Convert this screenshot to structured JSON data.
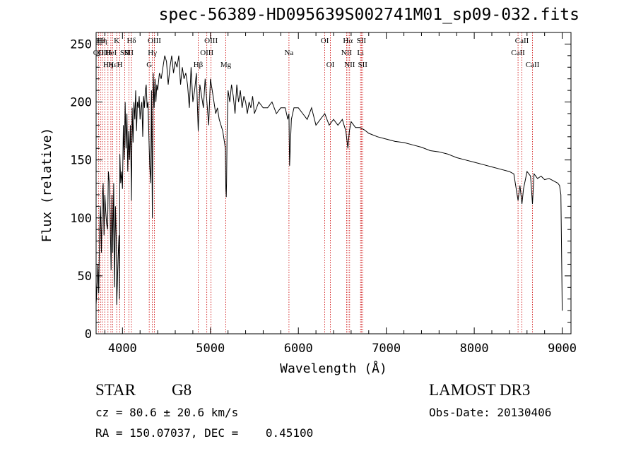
{
  "chart_data": {
    "type": "line",
    "title": "spec-56389-HD095639S002741M01_sp09-032.fits",
    "xlabel": "Wavelength (Å)",
    "ylabel": "Flux (relative)",
    "xlim": [
      3700,
      9100
    ],
    "ylim": [
      0,
      260
    ],
    "xticks": [
      4000,
      5000,
      6000,
      7000,
      8000,
      9000
    ],
    "yticks": [
      0,
      50,
      100,
      150,
      200,
      250
    ],
    "grid": false,
    "series": [
      {
        "x": [
          3700,
          3710,
          3720,
          3730,
          3740,
          3750,
          3760,
          3770,
          3780,
          3790,
          3800,
          3810,
          3820,
          3830,
          3840,
          3850,
          3860,
          3870,
          3880,
          3890,
          3900,
          3910,
          3920,
          3930,
          3935,
          3940,
          3950,
          3960,
          3965,
          3970,
          3980,
          3990,
          4000,
          4010,
          4020,
          4030,
          4040,
          4050,
          4060,
          4070,
          4080,
          4090,
          4100,
          4102,
          4110,
          4120,
          4130,
          4140,
          4150,
          4160,
          4170,
          4180,
          4190,
          4200,
          4210,
          4220,
          4230,
          4240,
          4250,
          4260,
          4270,
          4280,
          4290,
          4300,
          4310,
          4320,
          4330,
          4340,
          4350,
          4360,
          4370,
          4380,
          4390,
          4400,
          4420,
          4440,
          4460,
          4480,
          4500,
          4520,
          4540,
          4560,
          4580,
          4600,
          4620,
          4640,
          4660,
          4680,
          4700,
          4720,
          4740,
          4760,
          4780,
          4800,
          4820,
          4840,
          4861,
          4880,
          4900,
          4920,
          4940,
          4960,
          4980,
          5000,
          5020,
          5040,
          5060,
          5080,
          5100,
          5120,
          5140,
          5160,
          5170,
          5175,
          5180,
          5183,
          5190,
          5200,
          5220,
          5240,
          5260,
          5280,
          5300,
          5320,
          5340,
          5360,
          5380,
          5400,
          5420,
          5440,
          5460,
          5480,
          5500,
          5550,
          5600,
          5650,
          5700,
          5750,
          5800,
          5850,
          5880,
          5893,
          5900,
          5920,
          5950,
          6000,
          6050,
          6100,
          6150,
          6200,
          6250,
          6300,
          6350,
          6400,
          6450,
          6500,
          6540,
          6563,
          6580,
          6600,
          6650,
          6700,
          6750,
          6800,
          6900,
          7000,
          7100,
          7200,
          7300,
          7400,
          7500,
          7600,
          7700,
          7800,
          7900,
          8000,
          8100,
          8200,
          8300,
          8400,
          8450,
          8498,
          8520,
          8542,
          8560,
          8600,
          8640,
          8662,
          8680,
          8720,
          8760,
          8800,
          8850,
          8900,
          8950,
          8970,
          8985,
          8990,
          8995,
          9000
        ],
        "y": [
          25,
          40,
          60,
          35,
          90,
          110,
          70,
          115,
          130,
          85,
          120,
          105,
          95,
          90,
          140,
          130,
          100,
          55,
          120,
          70,
          130,
          40,
          110,
          80,
          25,
          40,
          65,
          85,
          30,
          155,
          130,
          140,
          125,
          180,
          150,
          200,
          160,
          190,
          140,
          175,
          150,
          180,
          130,
          115,
          195,
          165,
          200,
          185,
          210,
          175,
          200,
          195,
          205,
          185,
          195,
          200,
          170,
          205,
          195,
          210,
          215,
          195,
          200,
          170,
          145,
          130,
          210,
          100,
          225,
          195,
          220,
          200,
          215,
          210,
          225,
          220,
          230,
          240,
          235,
          215,
          230,
          240,
          225,
          235,
          230,
          240,
          215,
          230,
          220,
          225,
          215,
          195,
          230,
          200,
          210,
          225,
          175,
          215,
          205,
          195,
          220,
          200,
          180,
          220,
          210,
          200,
          190,
          195,
          185,
          180,
          175,
          165,
          160,
          125,
          118,
          130,
          175,
          210,
          200,
          215,
          205,
          190,
          215,
          200,
          210,
          195,
          205,
          200,
          190,
          200,
          195,
          205,
          190,
          200,
          195,
          195,
          200,
          190,
          195,
          195,
          185,
          190,
          145,
          185,
          195,
          195,
          190,
          185,
          195,
          180,
          185,
          190,
          180,
          185,
          180,
          185,
          175,
          160,
          175,
          183,
          178,
          178,
          176,
          173,
          170,
          168,
          166,
          165,
          163,
          161,
          158,
          157,
          155,
          152,
          150,
          148,
          146,
          144,
          142,
          140,
          138,
          115,
          128,
          112,
          125,
          140,
          136,
          112,
          138,
          134,
          136,
          133,
          134,
          132,
          130,
          128,
          120,
          90,
          60,
          20
        ]
      }
    ],
    "line_ids": [
      {
        "x": 3727,
        "label": "OII",
        "row": 2
      },
      {
        "x": 3750,
        "label": "Hθ",
        "row": 1
      },
      {
        "x": 3770,
        "label": "Hη",
        "row": 1
      },
      {
        "x": 3798,
        "label": "OIII",
        "row": 2
      },
      {
        "x": 3835,
        "label": "Hη",
        "row": 3
      },
      {
        "x": 3868,
        "label": "HeI",
        "row": 2
      },
      {
        "x": 3889,
        "label": "Hε",
        "row": 3
      },
      {
        "x": 3934,
        "label": "K",
        "row": 1
      },
      {
        "x": 3969,
        "label": "H",
        "row": 3
      },
      {
        "x": 4026,
        "label": "SII",
        "row": 2
      },
      {
        "x": 4102,
        "label": "Hδ",
        "row": 1
      },
      {
        "x": 4072,
        "label": "SII",
        "row": 2
      },
      {
        "x": 4304,
        "label": "G",
        "row": 3
      },
      {
        "x": 4340,
        "label": "Hγ",
        "row": 2
      },
      {
        "x": 4363,
        "label": "OIII",
        "row": 1
      },
      {
        "x": 4861,
        "label": "Hβ",
        "row": 3
      },
      {
        "x": 4959,
        "label": "OIII",
        "row": 2
      },
      {
        "x": 5007,
        "label": "OIII",
        "row": 1
      },
      {
        "x": 5175,
        "label": "Mg",
        "row": 3
      },
      {
        "x": 5893,
        "label": "Na",
        "row": 2
      },
      {
        "x": 6300,
        "label": "OI",
        "row": 1
      },
      {
        "x": 6364,
        "label": "OI",
        "row": 3
      },
      {
        "x": 6548,
        "label": "NII",
        "row": 2
      },
      {
        "x": 6563,
        "label": "Hα",
        "row": 1
      },
      {
        "x": 6583,
        "label": "NII",
        "row": 3
      },
      {
        "x": 6707,
        "label": "Li",
        "row": 2
      },
      {
        "x": 6716,
        "label": "SII",
        "row": 1
      },
      {
        "x": 6731,
        "label": "SII",
        "row": 3
      },
      {
        "x": 8498,
        "label": "CaII",
        "row": 2
      },
      {
        "x": 8542,
        "label": "CaII",
        "row": 1
      },
      {
        "x": 8662,
        "label": "CaII",
        "row": 3
      }
    ]
  },
  "info": {
    "class": "STAR",
    "subclass": "G8",
    "survey": "LAMOST DR3",
    "cz": "cz = 80.6 ± 20.6 km/s",
    "obs_date": "Obs-Date: 20130406",
    "coords": "RA = 150.07037, DEC =    0.45100"
  },
  "colors": {
    "spectrum": "#000000",
    "line_marker": "#cc0000",
    "axes": "#000000"
  }
}
